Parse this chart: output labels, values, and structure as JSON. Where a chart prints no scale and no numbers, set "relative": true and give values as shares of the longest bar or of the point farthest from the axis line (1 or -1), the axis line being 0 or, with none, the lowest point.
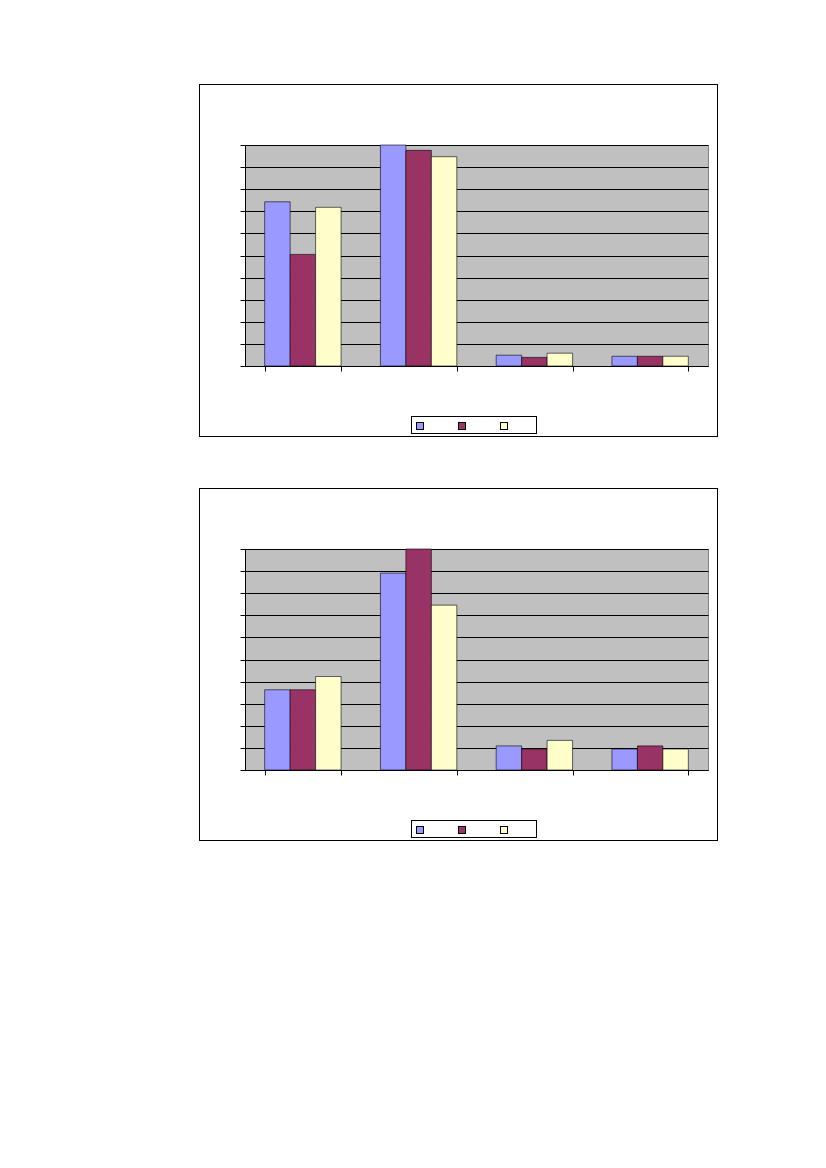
{
  "chart_data": [
    {
      "type": "bar",
      "relative": true,
      "grid": true,
      "categories": [
        null,
        null,
        null,
        null
      ],
      "series": [
        {
          "color": "#9999ff",
          "values": [
            0.743,
            1,
            0.049,
            0.044
          ]
        },
        {
          "color": "#993366",
          "values": [
            0.505,
            0.976,
            0.039,
            0.044
          ]
        },
        {
          "color": "#ffffcc",
          "values": [
            0.718,
            0.947,
            0.058,
            0.044
          ]
        }
      ]
    },
    {
      "type": "bar",
      "relative": true,
      "grid": true,
      "categories": [
        null,
        null,
        null,
        null
      ],
      "series": [
        {
          "color": "#9999ff",
          "values": [
            0.363,
            0.891,
            0.109,
            0.095
          ]
        },
        {
          "color": "#993366",
          "values": [
            0.363,
            1,
            0.095,
            0.109
          ]
        },
        {
          "color": "#ffffcc",
          "values": [
            0.423,
            0.746,
            0.134,
            0.095
          ]
        }
      ]
    }
  ]
}
